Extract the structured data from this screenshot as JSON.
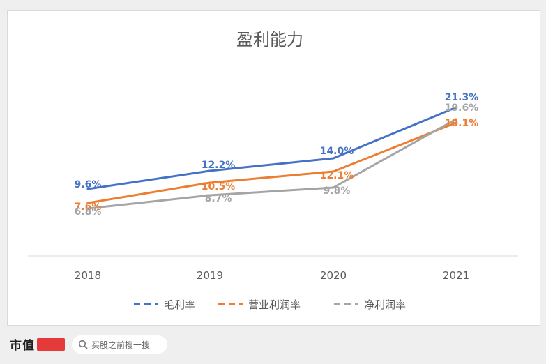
{
  "chart_data": {
    "type": "line",
    "title": "盈利能力",
    "categories": [
      "2018",
      "2019",
      "2020",
      "2021"
    ],
    "ylim": [
      0,
      25
    ],
    "grid": false,
    "legend_position": "bottom",
    "series": [
      {
        "name": "毛利率",
        "color": "#4472C4",
        "values": [
          9.6,
          12.2,
          14.0,
          21.3
        ],
        "labels": [
          "9.6%",
          "12.2%",
          "14.0%",
          "21.3%"
        ]
      },
      {
        "name": "营业利润率",
        "color": "#ED7D31",
        "values": [
          7.6,
          10.5,
          12.1,
          19.1
        ],
        "labels": [
          "7.6%",
          "10.5%",
          "12.1%",
          "19.1%"
        ]
      },
      {
        "name": "净利润率",
        "color": "#A5A5A5",
        "values": [
          6.8,
          8.7,
          9.8,
          19.6
        ],
        "labels": [
          "6.8%",
          "8.7%",
          "9.8%",
          "19.6%"
        ]
      }
    ]
  },
  "footer": {
    "brand": "市值",
    "brand_mark_icon": "fengyun-logo-icon",
    "search_icon": "search-icon",
    "search_text": "买股之前搜一搜"
  }
}
